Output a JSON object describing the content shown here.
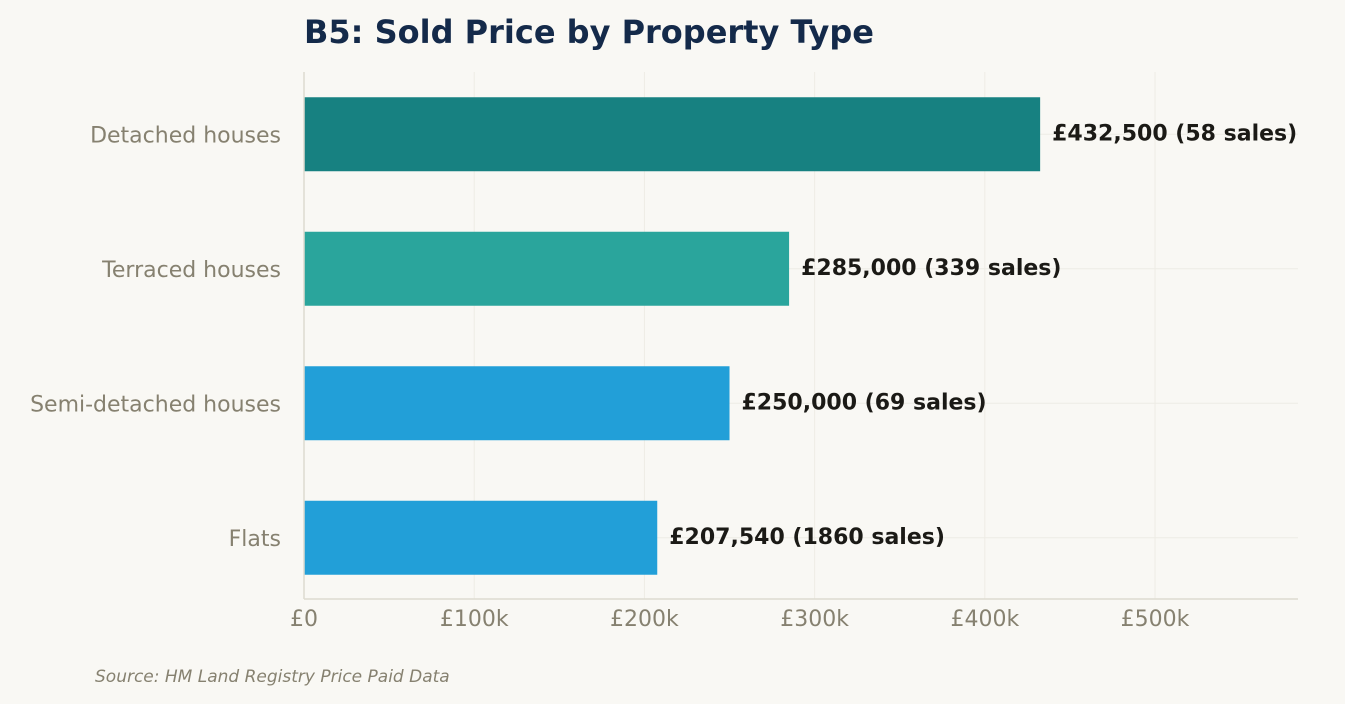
{
  "chart_data": {
    "type": "bar",
    "orientation": "horizontal",
    "title": "B5: Sold Price by Property Type",
    "source": "Source: HM Land Registry Price Paid Data",
    "categories": [
      "Detached houses",
      "Terraced houses",
      "Semi-detached houses",
      "Flats"
    ],
    "values": [
      432500,
      285000,
      250000,
      207540
    ],
    "sales": [
      58,
      339,
      69,
      1860
    ],
    "data_labels": [
      "£432,500  (58 sales)",
      "£285,000  (339 sales)",
      "£250,000  (69 sales)",
      "£207,540  (1860 sales)"
    ],
    "bar_colors": [
      "#178181",
      "#2aa59c",
      "#229fd8",
      "#229fd8"
    ],
    "xlim": [
      0,
      584000
    ],
    "x_ticks": [
      0,
      100000,
      200000,
      300000,
      400000,
      500000
    ],
    "x_tick_labels": [
      "£0",
      "£100k",
      "£200k",
      "£300k",
      "£400k",
      "£500k"
    ],
    "xlabel": "",
    "ylabel": "",
    "grid": true
  }
}
